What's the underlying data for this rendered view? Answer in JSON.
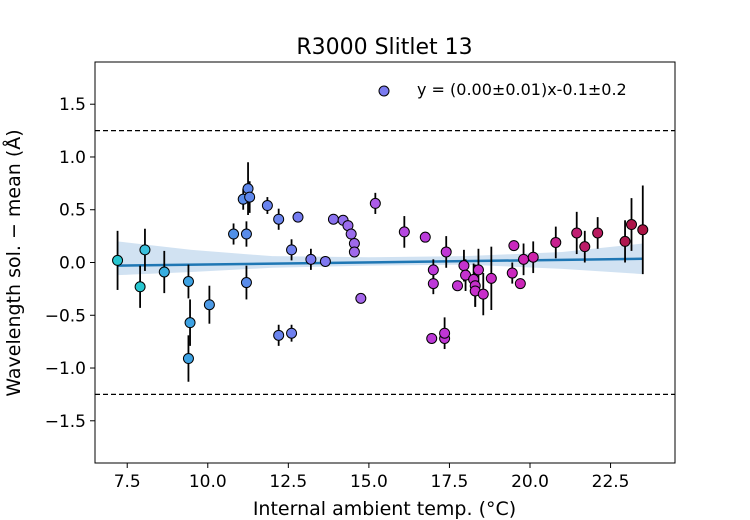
{
  "chart_data": {
    "type": "scatter",
    "title": "R3000 Slitlet 13",
    "xlabel": "Internal ambient temp. (°C)",
    "ylabel": "Wavelength sol. − mean (Å)",
    "xlim": [
      6.5,
      24.5
    ],
    "ylim": [
      -1.9,
      1.9
    ],
    "xticks": [
      7.5,
      10.0,
      12.5,
      15.0,
      17.5,
      20.0,
      22.5
    ],
    "xtick_labels": [
      "7.5",
      "10.0",
      "12.5",
      "15.0",
      "17.5",
      "20.0",
      "22.5"
    ],
    "yticks": [
      -1.5,
      -1.0,
      -0.5,
      0.0,
      0.5,
      1.0,
      1.5
    ],
    "ytick_labels": [
      "−1.5",
      "−1.0",
      "−0.5",
      "0.0",
      "0.5",
      "1.0",
      "1.5"
    ],
    "legend": {
      "position": "top-right",
      "label": "y = (0.00±0.01)x-0.1±0.2",
      "marker_color": "#7b7bf0"
    },
    "threshold_lines": [
      1.25,
      -1.25
    ],
    "fit": {
      "x_start": 7.2,
      "x_end": 23.5,
      "y_start": -0.03,
      "y_end": 0.035,
      "line_color": "#1f77b4",
      "band_color": "#c6dbef"
    },
    "band": [
      {
        "x": 7.2,
        "lo": -0.12,
        "hi": 0.2
      },
      {
        "x": 9.5,
        "lo": -0.09,
        "hi": 0.12
      },
      {
        "x": 12.0,
        "lo": -0.05,
        "hi": 0.06
      },
      {
        "x": 15.0,
        "lo": -0.03,
        "hi": 0.05
      },
      {
        "x": 18.0,
        "lo": -0.02,
        "hi": 0.06
      },
      {
        "x": 21.0,
        "lo": -0.06,
        "hi": 0.1
      },
      {
        "x": 23.5,
        "lo": -0.11,
        "hi": 0.18
      }
    ],
    "points": [
      {
        "x": 7.2,
        "y": 0.02,
        "err": 0.28,
        "color": "#26c6d0"
      },
      {
        "x": 7.9,
        "y": -0.23,
        "err": 0.2,
        "color": "#26c6d0"
      },
      {
        "x": 8.05,
        "y": 0.12,
        "err": 0.2,
        "color": "#3ac0dc"
      },
      {
        "x": 8.65,
        "y": -0.09,
        "err": 0.2,
        "color": "#38aee0"
      },
      {
        "x": 9.4,
        "y": -0.18,
        "err": 0.16,
        "color": "#3da2e3"
      },
      {
        "x": 9.45,
        "y": -0.57,
        "err": 0.22,
        "color": "#3da2e3"
      },
      {
        "x": 9.4,
        "y": -0.91,
        "err": 0.22,
        "color": "#3da2e3"
      },
      {
        "x": 10.05,
        "y": -0.4,
        "err": 0.18,
        "color": "#4d9ae6"
      },
      {
        "x": 10.8,
        "y": 0.27,
        "err": 0.1,
        "color": "#5090e8"
      },
      {
        "x": 11.1,
        "y": 0.6,
        "err": 0.1,
        "color": "#5a8cea"
      },
      {
        "x": 11.2,
        "y": 0.27,
        "err": 0.12,
        "color": "#5a8cea"
      },
      {
        "x": 11.2,
        "y": -0.19,
        "err": 0.16,
        "color": "#5a8cea"
      },
      {
        "x": 11.25,
        "y": 0.7,
        "err": 0.25,
        "color": "#5f88ec"
      },
      {
        "x": 11.3,
        "y": 0.62,
        "err": 0.15,
        "color": "#5f88ec"
      },
      {
        "x": 11.85,
        "y": 0.54,
        "err": 0.08,
        "color": "#6a84ee"
      },
      {
        "x": 12.2,
        "y": 0.41,
        "err": 0.1,
        "color": "#6a84ee"
      },
      {
        "x": 12.2,
        "y": -0.69,
        "err": 0.1,
        "color": "#6a84ee"
      },
      {
        "x": 12.6,
        "y": 0.12,
        "err": 0.1,
        "color": "#7080ef"
      },
      {
        "x": 12.6,
        "y": -0.67,
        "err": 0.08,
        "color": "#7080ef"
      },
      {
        "x": 12.8,
        "y": 0.43,
        "err": 0.05,
        "color": "#757cf0"
      },
      {
        "x": 13.2,
        "y": 0.03,
        "err": 0.1,
        "color": "#7b7bf0"
      },
      {
        "x": 13.65,
        "y": 0.01,
        "err": 0.05,
        "color": "#8078f0"
      },
      {
        "x": 13.9,
        "y": 0.41,
        "err": 0.05,
        "color": "#8a72ef"
      },
      {
        "x": 14.2,
        "y": 0.4,
        "err": 0.05,
        "color": "#9470ee"
      },
      {
        "x": 14.35,
        "y": 0.35,
        "err": 0.05,
        "color": "#9a6cec"
      },
      {
        "x": 14.45,
        "y": 0.27,
        "err": 0.05,
        "color": "#9a6cec"
      },
      {
        "x": 14.55,
        "y": 0.18,
        "err": 0.05,
        "color": "#9f69eb"
      },
      {
        "x": 14.55,
        "y": 0.1,
        "err": 0.05,
        "color": "#9f69eb"
      },
      {
        "x": 14.75,
        "y": -0.34,
        "err": 0.04,
        "color": "#a466ea"
      },
      {
        "x": 15.2,
        "y": 0.56,
        "err": 0.1,
        "color": "#ad5ce8"
      },
      {
        "x": 16.1,
        "y": 0.29,
        "err": 0.15,
        "color": "#b548e0"
      },
      {
        "x": 16.75,
        "y": 0.24,
        "err": 0.05,
        "color": "#bb3ddb"
      },
      {
        "x": 17.0,
        "y": -0.07,
        "err": 0.1,
        "color": "#bd39d8"
      },
      {
        "x": 17.0,
        "y": -0.2,
        "err": 0.1,
        "color": "#bd39d8"
      },
      {
        "x": 16.95,
        "y": -0.72,
        "err": 0.05,
        "color": "#bd39d8"
      },
      {
        "x": 17.35,
        "y": -0.72,
        "err": 0.05,
        "color": "#c036d5"
      },
      {
        "x": 17.35,
        "y": -0.67,
        "err": 0.15,
        "color": "#c036d5"
      },
      {
        "x": 17.4,
        "y": 0.1,
        "err": 0.15,
        "color": "#c036d5"
      },
      {
        "x": 17.75,
        "y": -0.22,
        "err": 0.05,
        "color": "#c334d2"
      },
      {
        "x": 17.95,
        "y": -0.03,
        "err": 0.15,
        "color": "#c532cf"
      },
      {
        "x": 18.0,
        "y": -0.12,
        "err": 0.15,
        "color": "#c532cf"
      },
      {
        "x": 18.25,
        "y": -0.16,
        "err": 0.15,
        "color": "#c730cc"
      },
      {
        "x": 18.3,
        "y": -0.22,
        "err": 0.2,
        "color": "#c730cc"
      },
      {
        "x": 18.3,
        "y": -0.27,
        "err": 0.15,
        "color": "#c730cc"
      },
      {
        "x": 18.4,
        "y": -0.07,
        "err": 0.2,
        "color": "#c82eca"
      },
      {
        "x": 18.55,
        "y": -0.3,
        "err": 0.2,
        "color": "#c82eca"
      },
      {
        "x": 18.8,
        "y": -0.15,
        "err": 0.3,
        "color": "#c92cc6"
      },
      {
        "x": 19.45,
        "y": -0.1,
        "err": 0.1,
        "color": "#ca28be"
      },
      {
        "x": 19.5,
        "y": 0.16,
        "err": 0.05,
        "color": "#ca28be"
      },
      {
        "x": 19.7,
        "y": -0.2,
        "err": 0.05,
        "color": "#cb26b8"
      },
      {
        "x": 19.8,
        "y": 0.03,
        "err": 0.15,
        "color": "#cc24b2"
      },
      {
        "x": 20.1,
        "y": 0.05,
        "err": 0.15,
        "color": "#cc22aa"
      },
      {
        "x": 20.8,
        "y": 0.19,
        "err": 0.15,
        "color": "#c8208f"
      },
      {
        "x": 21.45,
        "y": 0.28,
        "err": 0.2,
        "color": "#c01e72"
      },
      {
        "x": 21.7,
        "y": 0.15,
        "err": 0.15,
        "color": "#bc1c68"
      },
      {
        "x": 22.1,
        "y": 0.28,
        "err": 0.15,
        "color": "#b81a5e"
      },
      {
        "x": 22.95,
        "y": 0.2,
        "err": 0.2,
        "color": "#b01850"
      },
      {
        "x": 23.15,
        "y": 0.36,
        "err": 0.25,
        "color": "#ad164a"
      },
      {
        "x": 23.5,
        "y": 0.31,
        "err": 0.42,
        "color": "#aa1444"
      }
    ]
  }
}
